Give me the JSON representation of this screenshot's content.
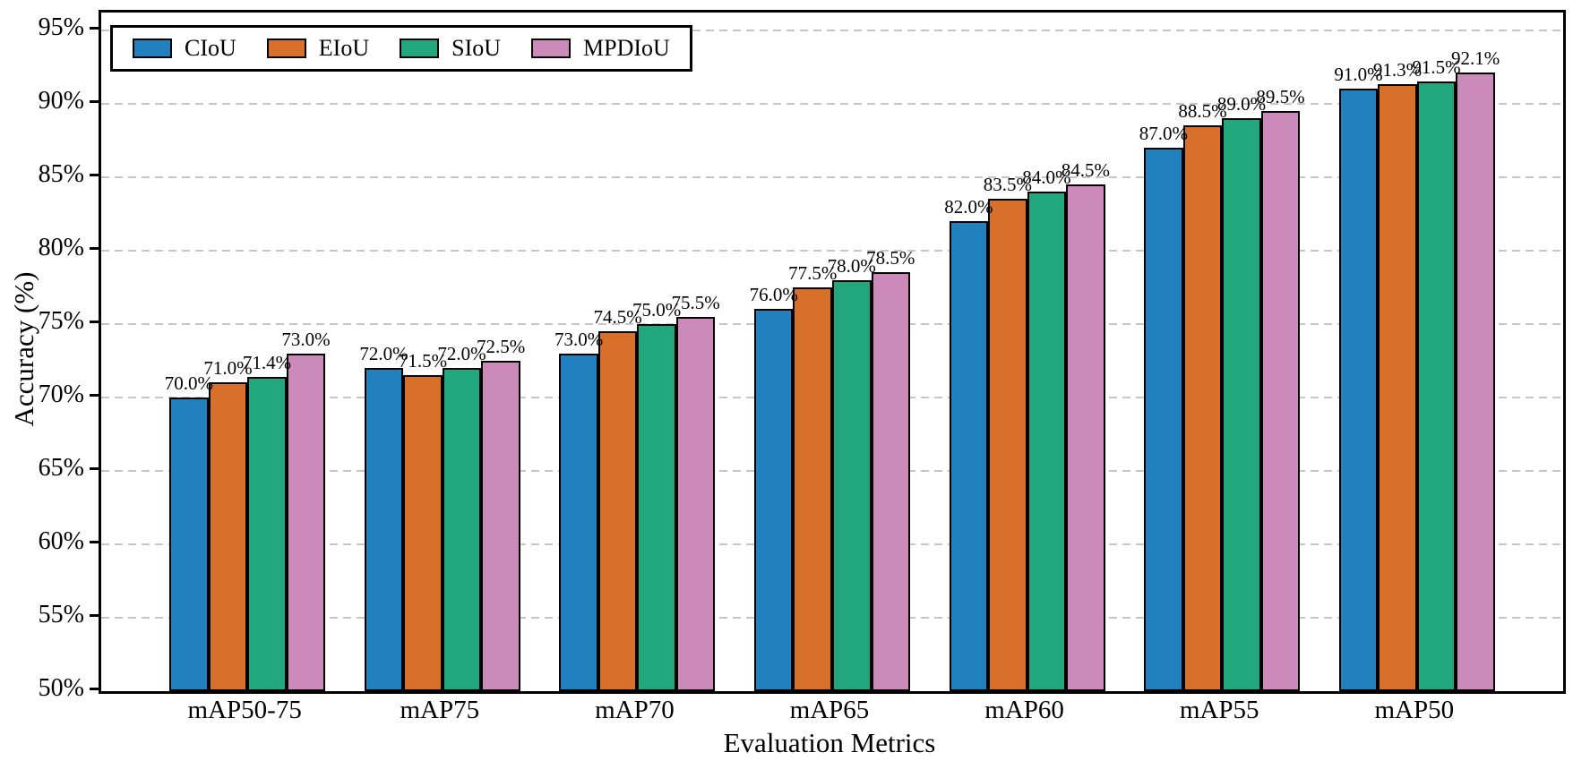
{
  "chart_data": {
    "type": "bar",
    "title": "",
    "xlabel": "Evaluation Metrics",
    "ylabel": "Accuracy (%)",
    "categories": [
      "mAP50-75",
      "mAP75",
      "mAP70",
      "mAP65",
      "mAP60",
      "mAP55",
      "mAP50"
    ],
    "series": [
      {
        "name": "CIoU",
        "color": "#2081BE",
        "values": [
          70.0,
          72.0,
          73.0,
          76.0,
          82.0,
          87.0,
          91.0
        ]
      },
      {
        "name": "EIoU",
        "color": "#D8702A",
        "values": [
          71.0,
          71.5,
          74.5,
          77.5,
          83.5,
          88.5,
          91.3
        ]
      },
      {
        "name": "SIoU",
        "color": "#21A67E",
        "values": [
          71.4,
          72.0,
          75.0,
          78.0,
          84.0,
          89.0,
          91.5
        ]
      },
      {
        "name": "MPDIoU",
        "color": "#CC8ABB",
        "values": [
          73.0,
          72.5,
          75.5,
          78.5,
          84.5,
          89.5,
          92.1
        ]
      }
    ],
    "value_label_format": "{value}%",
    "ylim": [
      50,
      96.2
    ],
    "yticks": [
      50,
      55,
      60,
      65,
      70,
      75,
      80,
      85,
      90,
      95
    ],
    "ytick_labels": [
      "50%",
      "55%",
      "60%",
      "65%",
      "70%",
      "75%",
      "80%",
      "85%",
      "90%",
      "95%"
    ],
    "grid": "horizontal-dashed",
    "grid_color": "#c6c6c6",
    "bar_edge_color": "#000000",
    "legend_position": "top-left",
    "legend_entries": [
      "CIoU",
      "EIoU",
      "SIoU",
      "MPDIoU"
    ]
  }
}
